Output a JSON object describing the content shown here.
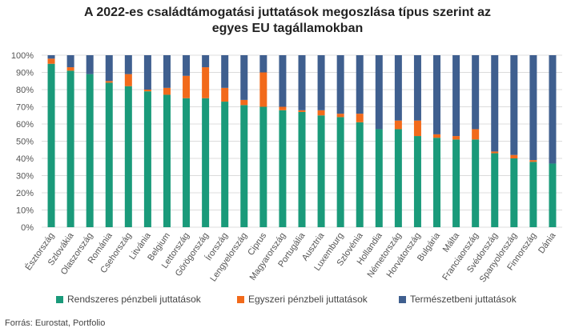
{
  "chart_data": {
    "type": "bar",
    "stacked": true,
    "title_lines": [
      "A 2022-es családtámogatási juttatások megoszlása típus szerint az",
      "egyes EU tagállamokban"
    ],
    "ylim": [
      0,
      100
    ],
    "yticks": [
      "0%",
      "10%",
      "20%",
      "30%",
      "40%",
      "50%",
      "60%",
      "70%",
      "80%",
      "90%",
      "100%"
    ],
    "grid": true,
    "legend_position": "bottom",
    "categories": [
      "Észtország",
      "Szlovákia",
      "Olaszország",
      "Románia",
      "Csehország",
      "Litvánia",
      "Belgium",
      "Lettország",
      "Görögország",
      "Írország",
      "Lengyelország",
      "Ciprus",
      "Magyarország",
      "Portugália",
      "Ausztria",
      "Luxemburg",
      "Szlovénia",
      "Hollandia",
      "Németország",
      "Horvátország",
      "Bulgária",
      "Málta",
      "Franciaország",
      "Svédország",
      "Spanyolország",
      "Finnország",
      "Dánia"
    ],
    "series": [
      {
        "name": "Rendszeres pénzbeli juttatások",
        "color": "#1a9a7a",
        "values": [
          95,
          91,
          89,
          84,
          82,
          79,
          77,
          75,
          75,
          73,
          71,
          70,
          68,
          67,
          65,
          64,
          61,
          57,
          57,
          53,
          52,
          51,
          51,
          43,
          40,
          38,
          37
        ]
      },
      {
        "name": "Egyszeri pénzbeli juttatások",
        "color": "#f26a1b",
        "values": [
          3,
          2,
          0,
          1,
          7,
          1,
          4,
          13,
          18,
          8,
          3,
          20,
          2,
          1,
          3,
          2,
          5,
          0,
          5,
          9,
          2,
          2,
          6,
          1,
          2,
          1,
          0
        ]
      },
      {
        "name": "Természetbeni juttatások",
        "color": "#3f5f8f",
        "values": [
          2,
          7,
          11,
          15,
          11,
          20,
          19,
          12,
          7,
          19,
          26,
          10,
          30,
          32,
          32,
          34,
          34,
          43,
          38,
          38,
          46,
          47,
          43,
          56,
          58,
          61,
          63
        ]
      }
    ]
  },
  "source": "Forrás:  Eurostat,  Portfolio"
}
